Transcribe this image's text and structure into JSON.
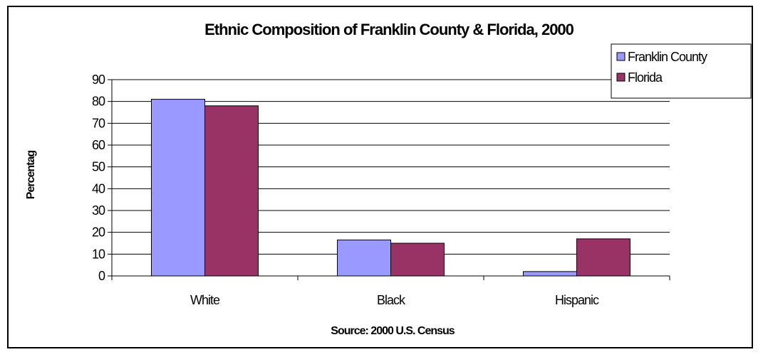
{
  "chart_data": {
    "type": "bar",
    "title": "Ethnic Composition of Franklin County & Florida, 2000",
    "xlabel": "Source: 2000 U.S. Census",
    "ylabel": "Percentag",
    "categories": [
      "White",
      "Black",
      "Hispanic"
    ],
    "yticks": [
      "0",
      "10",
      "20",
      "30",
      "40",
      "50",
      "60",
      "70",
      "80",
      "90"
    ],
    "ylim": [
      0,
      90
    ],
    "grid": true,
    "legend_position": "top-right",
    "series": [
      {
        "name": "Franklin County",
        "values": [
          81,
          16.5,
          2
        ],
        "color": "#9999ff"
      },
      {
        "name": "Florida",
        "values": [
          78,
          15,
          17
        ],
        "color": "#993366"
      }
    ]
  }
}
